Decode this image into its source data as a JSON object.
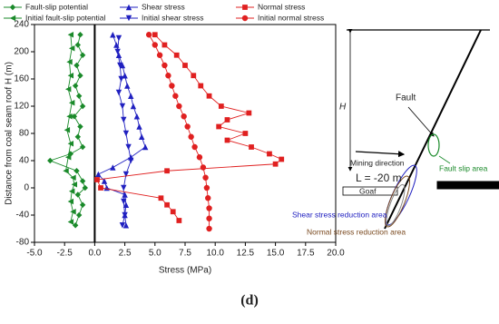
{
  "chart_data": {
    "type": "line",
    "xlabel": "Stress (MPa)",
    "ylabel": "Distance from coal seam roof H (m)",
    "xlim": [
      -5,
      20
    ],
    "xticks": [
      {
        "value": -5,
        "label": "-5.0"
      },
      {
        "value": -2.5,
        "label": "-2.5"
      },
      {
        "value": 0,
        "label": "0.0"
      },
      {
        "value": 2.5,
        "label": "2.5"
      },
      {
        "value": 5,
        "label": "5.0"
      },
      {
        "value": 7.5,
        "label": "7.5"
      },
      {
        "value": 10,
        "label": "10.0"
      },
      {
        "value": 12.5,
        "label": "12.5"
      },
      {
        "value": 15,
        "label": "15.0"
      },
      {
        "value": 17.5,
        "label": "17.5"
      },
      {
        "value": 20,
        "label": "20.0"
      }
    ],
    "ylim": [
      -80,
      240
    ],
    "yticks": [
      -80,
      -40,
      0,
      40,
      80,
      120,
      160,
      200,
      240
    ],
    "series": [
      {
        "name": "Fault-slip potential",
        "color": "#1a8a2a",
        "marker": "diamond",
        "x": [
          -1.2,
          -1.4,
          -1.0,
          -1.5,
          -1.2,
          -1.6,
          -1.3,
          -1.0,
          -1.7,
          -1.2,
          -1.4,
          -1.0,
          -2.0,
          -3.7,
          -1.5,
          -1.0,
          -0.8,
          -1.4,
          -1.0,
          -1.3,
          -1.6
        ],
        "y": [
          225,
          210,
          195,
          180,
          165,
          150,
          135,
          120,
          105,
          90,
          75,
          60,
          50,
          40,
          25,
          10,
          0,
          -10,
          -25,
          -40,
          -55
        ]
      },
      {
        "name": "Initial fault-slip potential",
        "color": "#1a8a2a",
        "marker": "triangle-left",
        "x": [
          -2.0,
          -1.9,
          -2.1,
          -2.0,
          -2.2,
          -1.9,
          -2.1,
          -2.3,
          -2.0,
          -2.2,
          -2.4,
          -1.8,
          -1.7,
          -1.9,
          -2.0,
          -1.8,
          -2.0
        ],
        "y": [
          225,
          205,
          185,
          165,
          145,
          125,
          105,
          85,
          65,
          45,
          25,
          15,
          5,
          -5,
          -20,
          -35,
          -50
        ]
      },
      {
        "name": "Shear stress",
        "color": "#2020c0",
        "marker": "triangle-up",
        "x": [
          1.5,
          1.8,
          2.0,
          2.3,
          2.5,
          2.7,
          3.0,
          3.2,
          3.5,
          3.7,
          3.9,
          4.2,
          3.0,
          1.5,
          0.3,
          0.8,
          1.0,
          2.5,
          2.6,
          2.5,
          2.6
        ],
        "y": [
          225,
          210,
          195,
          180,
          165,
          150,
          135,
          120,
          105,
          90,
          75,
          60,
          45,
          30,
          20,
          10,
          0,
          -10,
          -25,
          -40,
          -55
        ]
      },
      {
        "name": "Initial shear stress",
        "color": "#2020c0",
        "marker": "triangle-down",
        "x": [
          2.0,
          1.9,
          2.1,
          2.2,
          2.0,
          2.3,
          2.4,
          2.6,
          2.8,
          3.0,
          2.6,
          2.4,
          2.4,
          2.5,
          2.3
        ],
        "y": [
          220,
          200,
          180,
          160,
          140,
          120,
          100,
          80,
          60,
          40,
          20,
          0,
          -20,
          -40,
          -55
        ]
      },
      {
        "name": "Normal stress",
        "color": "#e02020",
        "marker": "square",
        "x": [
          5.0,
          5.8,
          6.8,
          7.5,
          8.2,
          8.8,
          9.5,
          10.5,
          12.8,
          11.0,
          10.3,
          12.5,
          11.0,
          13.0,
          14.5,
          15.5,
          15.0,
          6.0,
          0.2,
          0.5,
          5.5,
          6.0,
          6.5,
          7.0
        ],
        "y": [
          225,
          210,
          195,
          180,
          165,
          150,
          135,
          120,
          110,
          100,
          90,
          80,
          70,
          60,
          50,
          42,
          35,
          25,
          12,
          0,
          -15,
          -25,
          -35,
          -48
        ]
      },
      {
        "name": "Initial normal stress",
        "color": "#e02020",
        "marker": "circle",
        "x": [
          4.5,
          5.0,
          5.4,
          5.8,
          6.1,
          6.4,
          6.7,
          7.0,
          7.4,
          7.7,
          8.0,
          8.3,
          8.7,
          9.0,
          9.2,
          9.3,
          9.4,
          9.5,
          9.5,
          9.5
        ],
        "y": [
          225,
          210,
          195,
          180,
          165,
          150,
          135,
          120,
          105,
          90,
          75,
          60,
          45,
          30,
          15,
          0,
          -15,
          -30,
          -45,
          -60
        ]
      }
    ]
  },
  "diagram": {
    "h_label": "H",
    "fault": "Fault",
    "mining_direction": "Mining direction",
    "length": "L = -20 m",
    "goaf": "Goaf",
    "fault_slip_area": "Fault slip area",
    "shear_area": "Shear stress reduction area",
    "normal_area": "Normal stress reduction area"
  },
  "caption": "(d)"
}
